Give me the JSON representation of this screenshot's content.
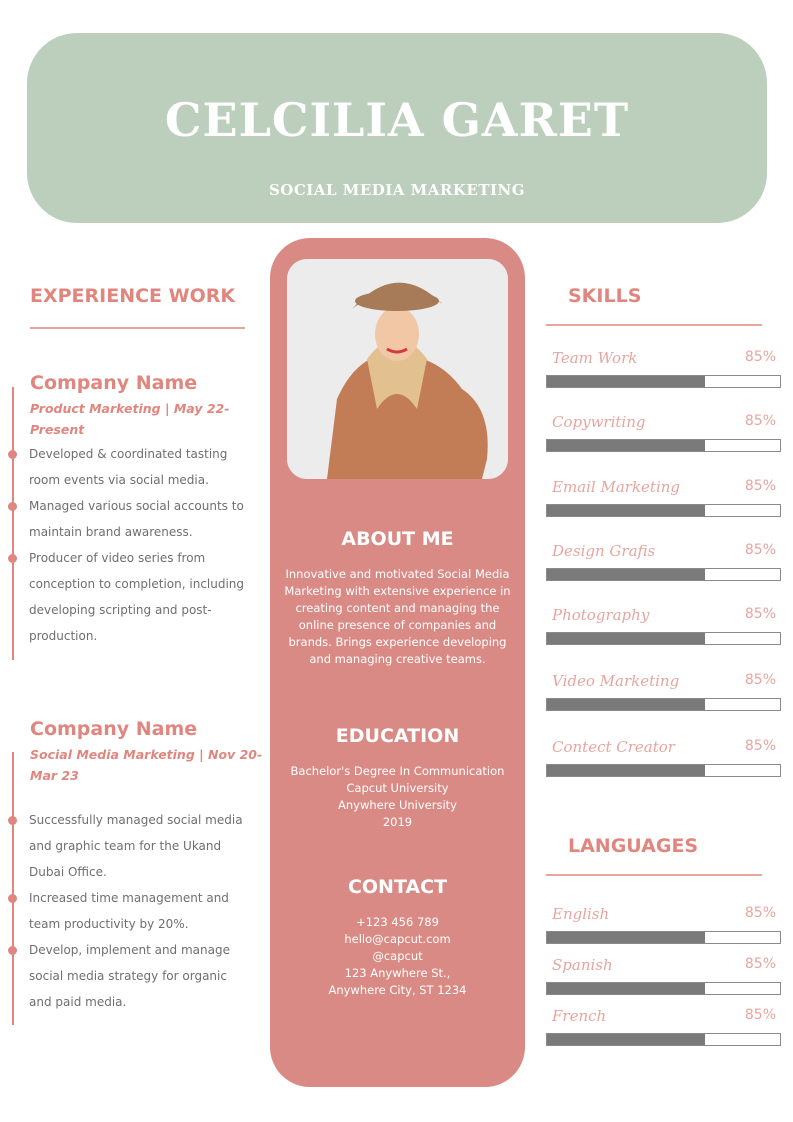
{
  "header": {
    "name": "CELCILIA GARET",
    "title": "SOCIAL MEDIA MARKETING"
  },
  "colors": {
    "header_bg": "#bccfbc",
    "accent": "#d98a85",
    "heading": "#e0867e",
    "bar": "#7a7a7a"
  },
  "experience": {
    "heading": "EXPERIENCE WORK",
    "jobs": [
      {
        "company": "Company Name",
        "role": "Product Marketing | May 22-Present",
        "bullets": [
          "Developed & coordinated tasting room events via social media.",
          "Managed various social accounts to maintain brand awareness.",
          "Producer of video series from conception to completion, including developing scripting and post-production."
        ]
      },
      {
        "company": "Company Name",
        "role": "Social Media Marketing | Nov 20-Mar 23",
        "bullets": [
          "Successfully managed social media and graphic team for the Ukand Dubai Office.",
          "Increased time management and team productivity by 20%.",
          "Develop, implement and manage social media strategy for organic and paid media."
        ]
      }
    ]
  },
  "about": {
    "heading": "ABOUT ME",
    "text": "Innovative and motivated Social Media Marketing with extensive experience in creating content and managing the online presence of companies and brands. Brings experience developing and managing creative teams."
  },
  "education": {
    "heading": "EDUCATION",
    "lines": [
      "Bachelor's Degree In Communication",
      "Capcut University",
      "Anywhere University",
      "2019"
    ]
  },
  "contact": {
    "heading": "CONTACT",
    "lines": [
      "+123  456 789",
      "hello@capcut.com",
      "@capcut",
      "123 Anywhere St.,",
      "Anywhere City, ST 1234"
    ]
  },
  "skills": {
    "heading": "SKILLS",
    "items": [
      {
        "label": "Team Work",
        "percent": "85%",
        "bar_fill": 68
      },
      {
        "label": "Copywriting",
        "percent": "85%",
        "bar_fill": 68
      },
      {
        "label": "Email Marketing",
        "percent": "85%",
        "bar_fill": 68
      },
      {
        "label": "Design Grafis",
        "percent": "85%",
        "bar_fill": 68
      },
      {
        "label": "Photography",
        "percent": "85%",
        "bar_fill": 68
      },
      {
        "label": "Video Marketing",
        "percent": "85%",
        "bar_fill": 68
      },
      {
        "label": "Contect Creator",
        "percent": "85%",
        "bar_fill": 68
      }
    ]
  },
  "languages": {
    "heading": "LANGUAGES",
    "items": [
      {
        "label": "English",
        "percent": "85%",
        "bar_fill": 68
      },
      {
        "label": "Spanish",
        "percent": "85%",
        "bar_fill": 68
      },
      {
        "label": "French",
        "percent": "85%",
        "bar_fill": 68
      }
    ]
  }
}
